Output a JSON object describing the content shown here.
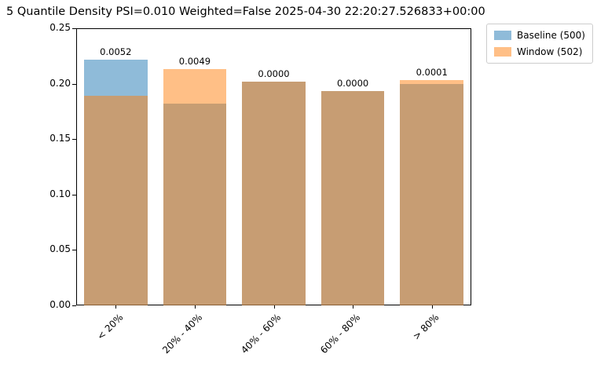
{
  "title": "5 Quantile Density PSI=0.010 Weighted=False 2025-04-30 22:20:27.526833+00:00",
  "legend": {
    "entries": [
      {
        "label": "Baseline (500)",
        "color": "rgba(31,119,180,0.5)"
      },
      {
        "label": "Window (502)",
        "color": "rgba(255,127,14,0.5)"
      }
    ]
  },
  "chart_data": {
    "type": "bar",
    "title": "5 Quantile Density PSI=0.010 Weighted=False 2025-04-30 22:20:27.526833+00:00",
    "categories": [
      "< 20%",
      "20% - 40%",
      "40% - 60%",
      "60% - 80%",
      "> 80%"
    ],
    "series": [
      {
        "name": "Baseline (500)",
        "color": "rgba(31,119,180,0.5)",
        "values": [
          0.222,
          0.182,
          0.202,
          0.193,
          0.2
        ]
      },
      {
        "name": "Window (502)",
        "color": "rgba(255,127,14,0.5)",
        "values": [
          0.189,
          0.213,
          0.202,
          0.193,
          0.203
        ]
      }
    ],
    "bar_labels": [
      "0.0052",
      "0.0049",
      "0.0000",
      "0.0000",
      "0.0001"
    ],
    "xlabel": "",
    "ylabel": "",
    "ylim": [
      0,
      0.25
    ],
    "yticks": [
      "0.00",
      "0.05",
      "0.10",
      "0.15",
      "0.20",
      "0.25"
    ],
    "grid": false,
    "legend_position": "upper right, outside axes"
  }
}
